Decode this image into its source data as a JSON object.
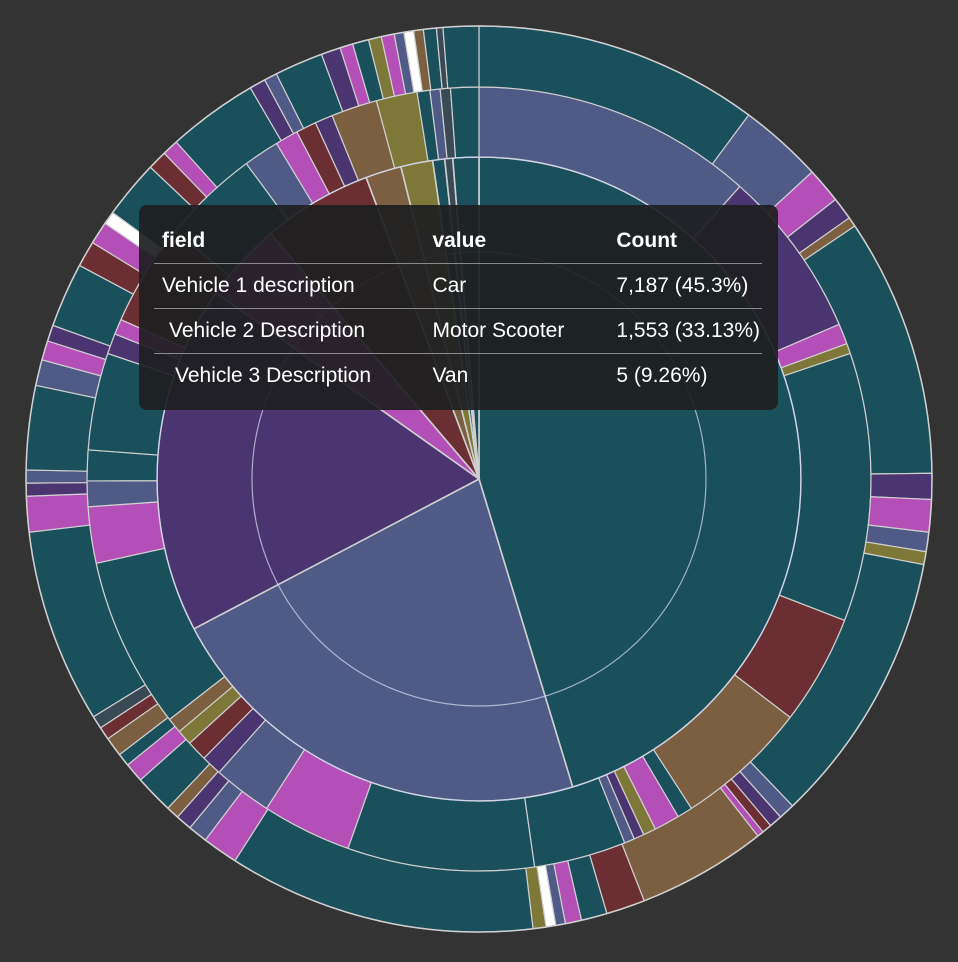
{
  "chart_data": {
    "type": "sunburst",
    "levels": [
      "Vehicle 1 description",
      "Vehicle 2 Description",
      "Vehicle 3 Description"
    ],
    "rings": [
      {
        "level": "Vehicle 1 description",
        "segments": [
          {
            "value": 45.3,
            "color": "#1a4f5c",
            "label": "Car"
          },
          {
            "value": 22.0,
            "color": "#4f5b86"
          },
          {
            "value": 17.5,
            "color": "#4b3570"
          },
          {
            "value": 4.0,
            "color": "#b44fb8"
          },
          {
            "value": 5.5,
            "color": "#6b2f33"
          },
          {
            "value": 1.8,
            "color": "#7b5f40"
          },
          {
            "value": 1.6,
            "color": "#7d7738"
          },
          {
            "value": 0.6,
            "color": "#1a4f5c"
          },
          {
            "value": 0.4,
            "color": "#3a4a55"
          },
          {
            "value": 1.3,
            "color": "#1a4f5c"
          }
        ]
      },
      {
        "level": "Vehicle 2 Description",
        "segments": [
          {
            "value": 11.0,
            "color": "#4f5b86"
          },
          {
            "value": 6.6,
            "color": "#4b3570"
          },
          {
            "value": 0.8,
            "color": "#b44fb8"
          },
          {
            "value": 0.4,
            "color": "#7d7738"
          },
          {
            "value": 10.5,
            "color": "#1a4f5c"
          },
          {
            "value": 4.3,
            "color": "#6b2f33"
          },
          {
            "value": 5.2,
            "color": "#7b5f40"
          },
          {
            "value": 0.6,
            "color": "#1a4f5c"
          },
          {
            "value": 1.0,
            "color": "#b44fb8"
          },
          {
            "value": 0.5,
            "color": "#7d7738"
          },
          {
            "value": 0.4,
            "color": "#4b3570"
          },
          {
            "value": 0.4,
            "color": "#4f5b86"
          },
          {
            "value": 3.6,
            "color": "#1a4f5c"
          },
          {
            "value": 7.3,
            "color": "#1a4f5c"
          },
          {
            "value": 3.5,
            "color": "#b44fb8"
          },
          {
            "value": 2.3,
            "color": "#4f5b86"
          },
          {
            "value": 0.8,
            "color": "#4b3570"
          },
          {
            "value": 0.8,
            "color": "#6b2f33"
          },
          {
            "value": 0.6,
            "color": "#7d7738"
          },
          {
            "value": 0.6,
            "color": "#7b5f40"
          },
          {
            "value": 6.7,
            "color": "#1a4f5c"
          },
          {
            "value": 2.2,
            "color": "#b44fb8"
          },
          {
            "value": 1.0,
            "color": "#4f5b86"
          },
          {
            "value": 1.2,
            "color": "#1a4f5c"
          },
          {
            "value": 3.8,
            "color": "#1a4f5c"
          },
          {
            "value": 0.8,
            "color": "#4b3570"
          },
          {
            "value": 0.6,
            "color": "#b44fb8"
          },
          {
            "value": 4.0,
            "color": "#6b2f33"
          },
          {
            "value": 3.8,
            "color": "#1a4f5c"
          },
          {
            "value": 1.4,
            "color": "#4f5b86"
          },
          {
            "value": 0.9,
            "color": "#b44fb8"
          },
          {
            "value": 0.8,
            "color": "#6b2f33"
          },
          {
            "value": 0.7,
            "color": "#4b3570"
          },
          {
            "value": 1.8,
            "color": "#7b5f40"
          },
          {
            "value": 1.6,
            "color": "#7d7738"
          },
          {
            "value": 0.5,
            "color": "#1a4f5c"
          },
          {
            "value": 0.4,
            "color": "#4f5b86"
          },
          {
            "value": 0.4,
            "color": "#3a4a55"
          },
          {
            "value": 1.1,
            "color": "#1a4f5c"
          }
        ]
      },
      {
        "level": "Vehicle 3 Description",
        "segments": [
          {
            "value": 8.8,
            "color": "#1a4f5c"
          },
          {
            "value": 2.6,
            "color": "#4f5b86"
          },
          {
            "value": 1.1,
            "color": "#b44fb8"
          },
          {
            "value": 0.7,
            "color": "#4b3570"
          },
          {
            "value": 0.3,
            "color": "#7b5f40"
          },
          {
            "value": 8.0,
            "color": "#1a4f5c"
          },
          {
            "value": 0.8,
            "color": "#4b3570"
          },
          {
            "value": 1.0,
            "color": "#b44fb8"
          },
          {
            "value": 0.6,
            "color": "#4f5b86"
          },
          {
            "value": 0.4,
            "color": "#7d7738"
          },
          {
            "value": 8.5,
            "color": "#1a4f5c"
          },
          {
            "value": 0.5,
            "color": "#4f5b86"
          },
          {
            "value": 0.4,
            "color": "#4b3570"
          },
          {
            "value": 0.3,
            "color": "#6b2f33"
          },
          {
            "value": 0.2,
            "color": "#b44fb8"
          },
          {
            "value": 4.0,
            "color": "#7b5f40"
          },
          {
            "value": 1.2,
            "color": "#6b2f33"
          },
          {
            "value": 0.8,
            "color": "#1a4f5c"
          },
          {
            "value": 0.5,
            "color": "#b44fb8"
          },
          {
            "value": 0.3,
            "color": "#4f5b86"
          },
          {
            "value": 0.3,
            "color": "#ffffff"
          },
          {
            "value": 0.4,
            "color": "#7d7738"
          },
          {
            "value": 9.5,
            "color": "#1a4f5c"
          },
          {
            "value": 1.1,
            "color": "#b44fb8"
          },
          {
            "value": 0.6,
            "color": "#4f5b86"
          },
          {
            "value": 0.5,
            "color": "#4b3570"
          },
          {
            "value": 0.4,
            "color": "#7b5f40"
          },
          {
            "value": 1.2,
            "color": "#1a4f5c"
          },
          {
            "value": 0.6,
            "color": "#b44fb8"
          },
          {
            "value": 0.4,
            "color": "#1a4f5c"
          },
          {
            "value": 0.6,
            "color": "#7b5f40"
          },
          {
            "value": 0.4,
            "color": "#6b2f33"
          },
          {
            "value": 0.4,
            "color": "#3a4a55"
          },
          {
            "value": 6.0,
            "color": "#1a4f5c"
          },
          {
            "value": 1.1,
            "color": "#b44fb8"
          },
          {
            "value": 0.4,
            "color": "#4b3570"
          },
          {
            "value": 0.4,
            "color": "#4f5b86"
          },
          {
            "value": 2.6,
            "color": "#1a4f5c"
          },
          {
            "value": 0.8,
            "color": "#4f5b86"
          },
          {
            "value": 0.6,
            "color": "#b44fb8"
          },
          {
            "value": 0.5,
            "color": "#4b3570"
          },
          {
            "value": 2.0,
            "color": "#1a4f5c"
          },
          {
            "value": 0.8,
            "color": "#6b2f33"
          },
          {
            "value": 0.7,
            "color": "#b44fb8"
          },
          {
            "value": 0.4,
            "color": "#ffffff"
          },
          {
            "value": 1.8,
            "color": "#1a4f5c"
          },
          {
            "value": 0.6,
            "color": "#6b2f33"
          },
          {
            "value": 0.5,
            "color": "#b44fb8"
          },
          {
            "value": 2.8,
            "color": "#1a4f5c"
          },
          {
            "value": 0.5,
            "color": "#4b3570"
          },
          {
            "value": 0.4,
            "color": "#4f5b86"
          },
          {
            "value": 1.5,
            "color": "#1a4f5c"
          },
          {
            "value": 0.6,
            "color": "#4b3570"
          },
          {
            "value": 0.4,
            "color": "#b44fb8"
          },
          {
            "value": 0.5,
            "color": "#1a4f5c"
          },
          {
            "value": 0.4,
            "color": "#7d7738"
          },
          {
            "value": 0.4,
            "color": "#b44fb8"
          },
          {
            "value": 0.3,
            "color": "#4f5b86"
          },
          {
            "value": 0.3,
            "color": "#ffffff"
          },
          {
            "value": 0.3,
            "color": "#7b5f40"
          },
          {
            "value": 0.4,
            "color": "#1a4f5c"
          },
          {
            "value": 0.2,
            "color": "#3a4a55"
          },
          {
            "value": 1.1,
            "color": "#1a4f5c"
          }
        ]
      }
    ],
    "tooltip": {
      "headers": [
        "field",
        "value",
        "Count"
      ],
      "rows": [
        {
          "field": "Vehicle 1 description",
          "value": "Car",
          "count": "7,187 (45.3%)"
        },
        {
          "field": "Vehicle 2 Description",
          "value": "Motor Scooter",
          "count": "1,553 (33.13%)"
        },
        {
          "field": "Vehicle 3 Description",
          "value": "Van",
          "count": "5 (9.26%)"
        }
      ]
    },
    "colors": {
      "background": "#333333",
      "segment_border": "#cfcfcf",
      "highlight_ring": "#cfd6ee"
    }
  }
}
